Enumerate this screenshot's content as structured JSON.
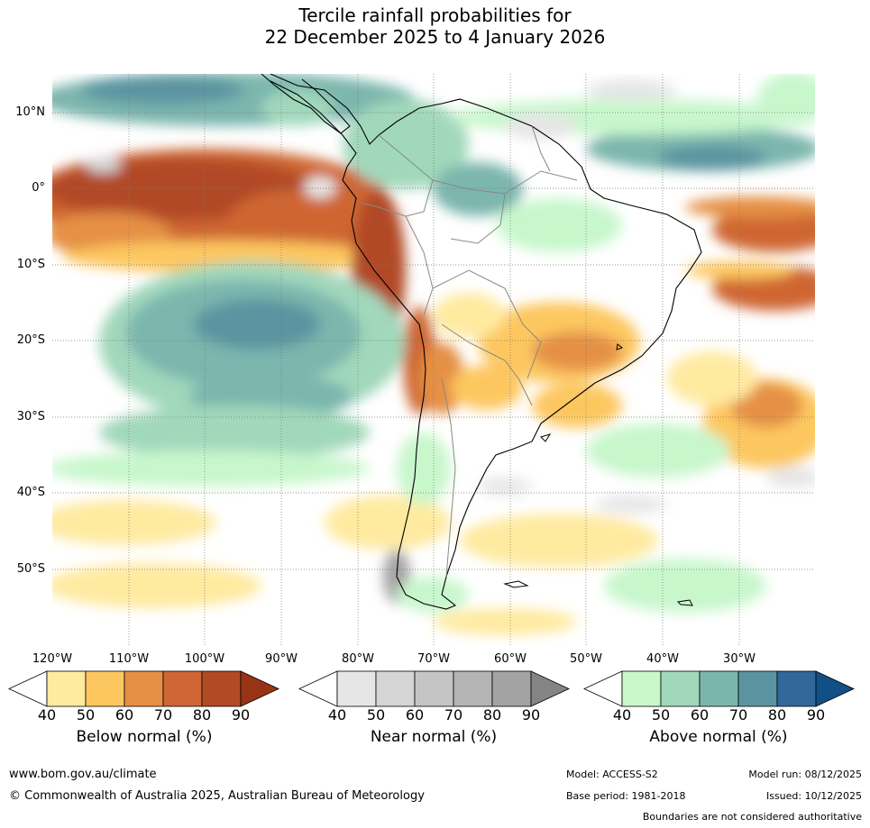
{
  "title": {
    "line1": "Tercile rainfall probabilities for",
    "line2": "22 December 2025 to 4 January 2026"
  },
  "map": {
    "lat_labels": [
      "10°N",
      "0°",
      "10°S",
      "20°S",
      "30°S",
      "40°S",
      "50°S"
    ],
    "lon_labels": [
      "120°W",
      "110°W",
      "100°W",
      "90°W",
      "80°W",
      "70°W",
      "60°W",
      "50°W",
      "40°W",
      "30°W"
    ]
  },
  "colorbars": [
    {
      "title": "Below normal (%)",
      "ticks": [
        "40",
        "50",
        "60",
        "70",
        "80",
        "90"
      ],
      "colors": [
        "#ffffff",
        "#ffeaa0",
        "#fdc760",
        "#e59045",
        "#cf6633",
        "#b24a26",
        "#973416"
      ]
    },
    {
      "title": "Near normal (%)",
      "ticks": [
        "40",
        "50",
        "60",
        "70",
        "80",
        "90"
      ],
      "colors": [
        "#ffffff",
        "#e6e6e6",
        "#d5d5d5",
        "#c5c5c5",
        "#b4b4b4",
        "#a3a3a3",
        "#848484"
      ]
    },
    {
      "title": "Above normal (%)",
      "ticks": [
        "40",
        "50",
        "60",
        "70",
        "80",
        "90"
      ],
      "colors": [
        "#ffffff",
        "#c8f7cc",
        "#a1d8bb",
        "#7bb6ad",
        "#5b94a1",
        "#326799",
        "#114f87"
      ]
    }
  ],
  "footer": {
    "url": "www.bom.gov.au/climate",
    "copyright": "© Commonwealth of Australia 2025, Australian Bureau of Meteorology",
    "model": "Model: ACCESS-S2",
    "base_period": "Base period: 1981-2018",
    "model_run": "Model run: 08/12/2025",
    "issued": "Issued: 10/12/2025",
    "disclaimer": "Boundaries are not considered authoritative"
  }
}
